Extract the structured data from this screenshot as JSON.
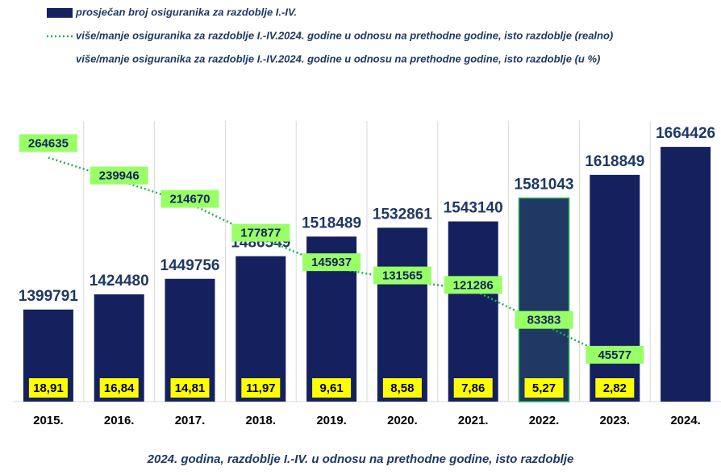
{
  "chart_data": {
    "type": "bar",
    "categories": [
      "2015.",
      "2016.",
      "2017.",
      "2018.",
      "2019.",
      "2020.",
      "2021.",
      "2022.",
      "2023.",
      "2024."
    ],
    "x_label": "2024. godina, razdoblje I.-IV. u odnosu na prethodne godine, isto razdoblje",
    "series": [
      {
        "name": "prosječan broj osiguranika za razdoblje I.-IV.",
        "type": "bar",
        "color": "#14215e",
        "bar_colors": [
          "#14215e",
          "#14215e",
          "#14215e",
          "#14215e",
          "#14215e",
          "#14215e",
          "#14215e",
          "#1f3864",
          "#14215e",
          "#14215e"
        ],
        "values": [
          1399791,
          1424480,
          1449756,
          1486549,
          1518489,
          1532861,
          1543140,
          1581043,
          1618849,
          1664426
        ]
      },
      {
        "name": "više/manje osiguranika za razdoblje I.-IV.2024. godine u odnosu na prethodne godine, isto razdoblje (realno)",
        "type": "line",
        "axis": "y2",
        "color": "#22b14c",
        "label_color": "#99ff66",
        "values": [
          264635,
          239946,
          214670,
          177877,
          145937,
          131565,
          121286,
          83383,
          45577,
          null
        ]
      },
      {
        "name": "više/manje osiguranika za razdoblje I.-IV.2024. godine u odnosu na prethodne godine, isto razdoblje (u %)",
        "type": "label",
        "color": "#ffff00",
        "values": [
          18.91,
          16.84,
          14.81,
          11.97,
          9.61,
          8.58,
          7.86,
          5.27,
          2.82,
          null
        ],
        "value_labels": [
          "18,91",
          "16,84",
          "14,81",
          "11,97",
          "9,61",
          "8,58",
          "7,86",
          "5,27",
          "2,82",
          null
        ]
      }
    ],
    "ylim": [
      1250000,
      1700000
    ],
    "y2lim": [
      0,
      300000
    ],
    "grid": true
  }
}
